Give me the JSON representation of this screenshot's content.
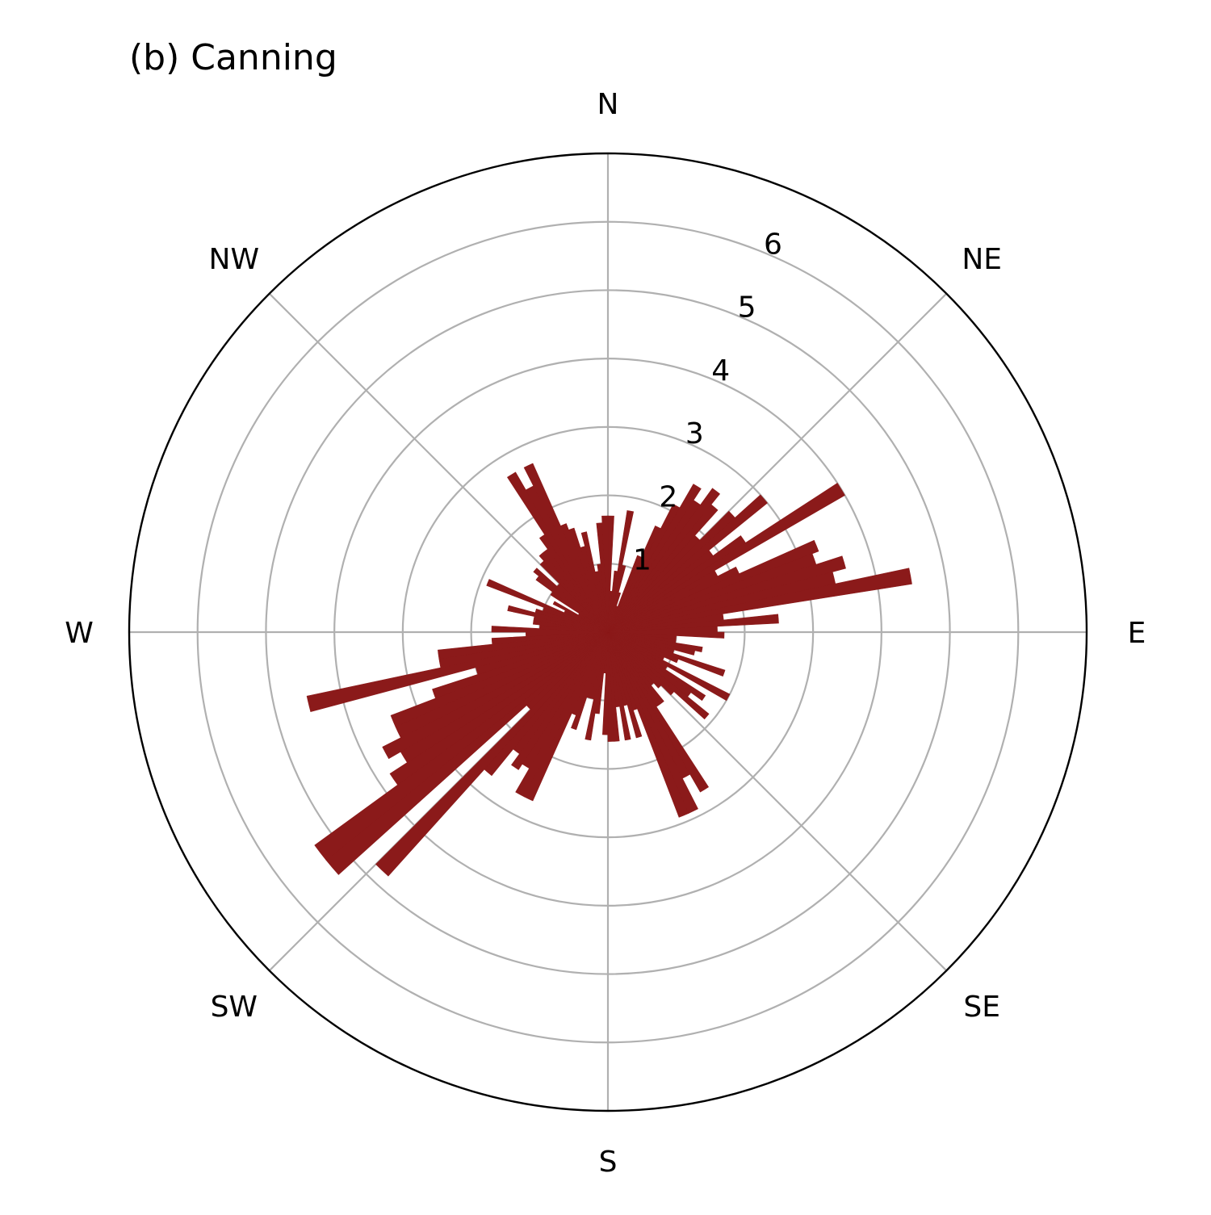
{
  "chart_data": {
    "type": "polar_bar",
    "title": "(b) Canning",
    "direction_labels": [
      "N",
      "NE",
      "E",
      "SE",
      "S",
      "SW",
      "W",
      "NW"
    ],
    "radial_ticks": [
      "1",
      "2",
      "3",
      "4",
      "5",
      "6"
    ],
    "rlim": [
      0,
      7
    ],
    "grid": true,
    "bar_color": "#8b1a1a",
    "gridline_color": "#b0b0b0",
    "bin_width_deg": 3,
    "bins": [
      {
        "dir": 1.5,
        "value": 1.7
      },
      {
        "dir": 4.5,
        "value": 0.6
      },
      {
        "dir": 7.5,
        "value": 0.9
      },
      {
        "dir": 10.5,
        "value": 1.8
      },
      {
        "dir": 13.5,
        "value": 1.0
      },
      {
        "dir": 16.5,
        "value": 0.6
      },
      {
        "dir": 19.5,
        "value": 0.4
      },
      {
        "dir": 22.5,
        "value": 1.2
      },
      {
        "dir": 25.5,
        "value": 1.7
      },
      {
        "dir": 28.5,
        "value": 2.1
      },
      {
        "dir": 31.5,
        "value": 2.5
      },
      {
        "dir": 34.5,
        "value": 2.3
      },
      {
        "dir": 37.5,
        "value": 2.6
      },
      {
        "dir": 40.5,
        "value": 2.4
      },
      {
        "dir": 43.5,
        "value": 1.9
      },
      {
        "dir": 46.5,
        "value": 2.5
      },
      {
        "dir": 49.5,
        "value": 3.0
      },
      {
        "dir": 52.5,
        "value": 1.9
      },
      {
        "dir": 55.5,
        "value": 2.4
      },
      {
        "dir": 58.5,
        "value": 4.0
      },
      {
        "dir": 61.5,
        "value": 1.8
      },
      {
        "dir": 64.5,
        "value": 2.1
      },
      {
        "dir": 67.5,
        "value": 3.3
      },
      {
        "dir": 70.5,
        "value": 3.2
      },
      {
        "dir": 73.5,
        "value": 3.6
      },
      {
        "dir": 76.5,
        "value": 3.4
      },
      {
        "dir": 79.5,
        "value": 4.5
      },
      {
        "dir": 82.5,
        "value": 1.7
      },
      {
        "dir": 85.5,
        "value": 2.5
      },
      {
        "dir": 88.5,
        "value": 1.6
      },
      {
        "dir": 91.5,
        "value": 1.7
      },
      {
        "dir": 94.5,
        "value": 1.0
      },
      {
        "dir": 97.5,
        "value": 1.0
      },
      {
        "dir": 100.5,
        "value": 1.4
      },
      {
        "dir": 103.5,
        "value": 1.3
      },
      {
        "dir": 106.5,
        "value": 1.0
      },
      {
        "dir": 109.5,
        "value": 1.8
      },
      {
        "dir": 112.5,
        "value": 1.1
      },
      {
        "dir": 115.5,
        "value": 0.9
      },
      {
        "dir": 118.5,
        "value": 2.0
      },
      {
        "dir": 121.5,
        "value": 1.0
      },
      {
        "dir": 124.5,
        "value": 1.7
      },
      {
        "dir": 127.5,
        "value": 1.5
      },
      {
        "dir": 130.5,
        "value": 1.9
      },
      {
        "dir": 133.5,
        "value": 1.3
      },
      {
        "dir": 136.5,
        "value": 1.1
      },
      {
        "dir": 139.5,
        "value": 1.0
      },
      {
        "dir": 142.5,
        "value": 1.3
      },
      {
        "dir": 145.5,
        "value": 1.3
      },
      {
        "dir": 148.5,
        "value": 2.7
      },
      {
        "dir": 151.5,
        "value": 2.4
      },
      {
        "dir": 154.5,
        "value": 2.9
      },
      {
        "dir": 157.5,
        "value": 2.9
      },
      {
        "dir": 160.5,
        "value": 1.2
      },
      {
        "dir": 163.5,
        "value": 1.6
      },
      {
        "dir": 166.5,
        "value": 1.1
      },
      {
        "dir": 169.5,
        "value": 1.6
      },
      {
        "dir": 172.5,
        "value": 1.1
      },
      {
        "dir": 175.5,
        "value": 1.6
      },
      {
        "dir": 178.5,
        "value": 1.6
      },
      {
        "dir": 181.5,
        "value": 1.5
      },
      {
        "dir": 184.5,
        "value": 0.6
      },
      {
        "dir": 187.5,
        "value": 1.2
      },
      {
        "dir": 190.5,
        "value": 1.6
      },
      {
        "dir": 193.5,
        "value": 1.0
      },
      {
        "dir": 196.5,
        "value": 1.0
      },
      {
        "dir": 199.5,
        "value": 1.5
      },
      {
        "dir": 202.5,
        "value": 1.3
      },
      {
        "dir": 205.5,
        "value": 2.7
      },
      {
        "dir": 208.5,
        "value": 2.7
      },
      {
        "dir": 211.5,
        "value": 2.3
      },
      {
        "dir": 214.5,
        "value": 2.4
      },
      {
        "dir": 217.5,
        "value": 2.2
      },
      {
        "dir": 220.5,
        "value": 2.7
      },
      {
        "dir": 223.5,
        "value": 4.8
      },
      {
        "dir": 226.5,
        "value": 1.6
      },
      {
        "dir": 229.5,
        "value": 5.3
      },
      {
        "dir": 232.5,
        "value": 5.3
      },
      {
        "dir": 235.5,
        "value": 3.8
      },
      {
        "dir": 238.5,
        "value": 3.5
      },
      {
        "dir": 241.5,
        "value": 3.7
      },
      {
        "dir": 244.5,
        "value": 3.4
      },
      {
        "dir": 247.5,
        "value": 3.4
      },
      {
        "dir": 250.5,
        "value": 2.7
      },
      {
        "dir": 253.5,
        "value": 2.0
      },
      {
        "dir": 256.5,
        "value": 4.5
      },
      {
        "dir": 259.5,
        "value": 2.5
      },
      {
        "dir": 262.5,
        "value": 2.5
      },
      {
        "dir": 265.5,
        "value": 1.7
      },
      {
        "dir": 268.5,
        "value": 1.2
      },
      {
        "dir": 271.5,
        "value": 1.7
      },
      {
        "dir": 274.5,
        "value": 1.0
      },
      {
        "dir": 277.5,
        "value": 1.1
      },
      {
        "dir": 280.5,
        "value": 1.1
      },
      {
        "dir": 283.5,
        "value": 1.5
      },
      {
        "dir": 286.5,
        "value": 1.1
      },
      {
        "dir": 289.5,
        "value": 1.0
      },
      {
        "dir": 292.5,
        "value": 1.9
      },
      {
        "dir": 295.5,
        "value": 0.7
      },
      {
        "dir": 298.5,
        "value": 0.9
      },
      {
        "dir": 301.5,
        "value": 0.5
      },
      {
        "dir": 304.5,
        "value": 1.0
      },
      {
        "dir": 307.5,
        "value": 1.3
      },
      {
        "dir": 310.5,
        "value": 1.4
      },
      {
        "dir": 313.5,
        "value": 1.0
      },
      {
        "dir": 316.5,
        "value": 1.4
      },
      {
        "dir": 319.5,
        "value": 1.5
      },
      {
        "dir": 322.5,
        "value": 1.5
      },
      {
        "dir": 325.5,
        "value": 1.7
      },
      {
        "dir": 328.5,
        "value": 2.7
      },
      {
        "dir": 331.5,
        "value": 2.4
      },
      {
        "dir": 334.5,
        "value": 2.7
      },
      {
        "dir": 337.5,
        "value": 1.7
      },
      {
        "dir": 340.5,
        "value": 1.6
      },
      {
        "dir": 343.5,
        "value": 1.3
      },
      {
        "dir": 346.5,
        "value": 1.5
      },
      {
        "dir": 349.5,
        "value": 0.9
      },
      {
        "dir": 352.5,
        "value": 1.0
      },
      {
        "dir": 355.5,
        "value": 1.6
      },
      {
        "dir": 358.5,
        "value": 1.7
      }
    ]
  }
}
